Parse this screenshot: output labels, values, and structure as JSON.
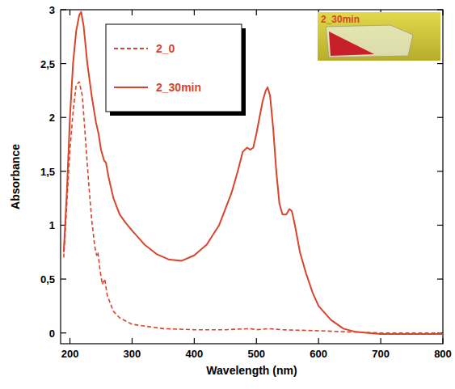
{
  "chart_data": {
    "type": "line",
    "x_label": "Wavelength (nm)",
    "y_label": "Absorbance",
    "inset_label": "2_30min",
    "xlim": [
      185,
      800
    ],
    "xticks": [
      200,
      300,
      400,
      500,
      600,
      700,
      800
    ],
    "ylim": [
      -0.1,
      3
    ],
    "yticks": [
      0,
      {
        "value": 0.5,
        "label": "0,5"
      },
      1,
      {
        "value": 1.5,
        "label": "1,5"
      },
      2,
      {
        "value": 2.5,
        "label": "2,5"
      },
      3
    ],
    "grid": false,
    "legend": "top-left",
    "series": [
      {
        "name": "2_0",
        "color": "#d9442c",
        "line_style": "dashed",
        "x": [
          190,
          195,
          200,
          205,
          210,
          215,
          220,
          225,
          230,
          235,
          240,
          243,
          245,
          248,
          252,
          256,
          260,
          270,
          280,
          300,
          350,
          400,
          450,
          490,
          500,
          520,
          540,
          600,
          650,
          700,
          800
        ],
        "values": [
          0.7,
          1.2,
          1.7,
          2.05,
          2.3,
          2.33,
          2.2,
          1.8,
          1.4,
          1.05,
          0.8,
          0.72,
          0.75,
          0.6,
          0.45,
          0.5,
          0.35,
          0.2,
          0.14,
          0.08,
          0.04,
          0.03,
          0.03,
          0.04,
          0.03,
          0.04,
          0.03,
          0.02,
          0.01,
          0.0,
          0.0
        ]
      },
      {
        "name": "2_30min",
        "color": "#d9442c",
        "line_style": "solid",
        "x": [
          190,
          195,
          200,
          205,
          210,
          215,
          218,
          222,
          228,
          235,
          242,
          246,
          250,
          255,
          258,
          262,
          270,
          280,
          290,
          300,
          320,
          340,
          360,
          380,
          400,
          420,
          440,
          460,
          470,
          478,
          485,
          490,
          495,
          500,
          505,
          510,
          515,
          518,
          522,
          527,
          532,
          537,
          542,
          548,
          553,
          557,
          562,
          570,
          580,
          590,
          600,
          620,
          640,
          660,
          680,
          700,
          750,
          800
        ],
        "values": [
          0.75,
          1.3,
          2.0,
          2.5,
          2.8,
          2.95,
          2.98,
          2.85,
          2.5,
          2.2,
          1.95,
          1.85,
          1.7,
          1.6,
          1.58,
          1.45,
          1.25,
          1.1,
          1.02,
          0.95,
          0.82,
          0.73,
          0.68,
          0.67,
          0.72,
          0.82,
          1.0,
          1.3,
          1.5,
          1.68,
          1.72,
          1.7,
          1.72,
          1.85,
          2.0,
          2.15,
          2.25,
          2.28,
          2.2,
          1.9,
          1.5,
          1.2,
          1.1,
          1.1,
          1.15,
          1.13,
          1.0,
          0.75,
          0.55,
          0.38,
          0.25,
          0.12,
          0.04,
          0.01,
          0.0,
          -0.01,
          -0.01,
          -0.01
        ]
      }
    ]
  }
}
